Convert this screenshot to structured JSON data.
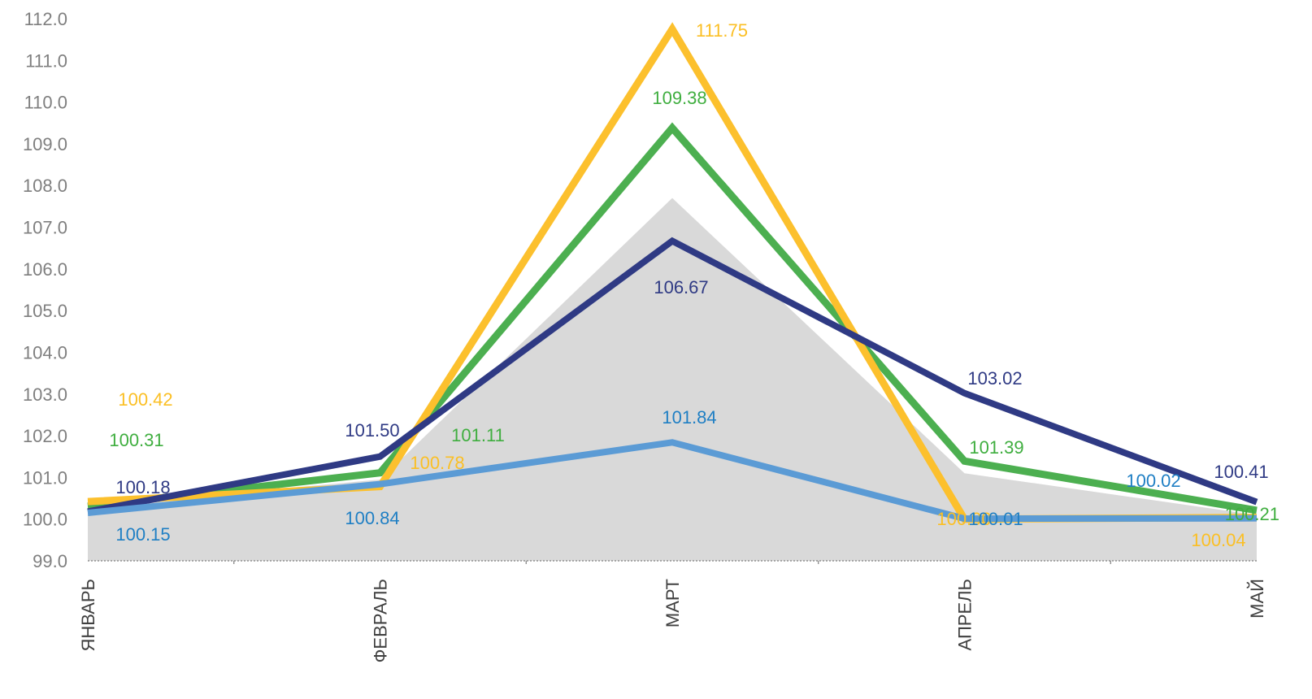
{
  "chart_data": {
    "type": "line",
    "categories": [
      "ЯНВАРЬ",
      "ФЕВРАЛЬ",
      "МАРТ",
      "АПРЕЛЬ",
      "МАЙ"
    ],
    "ylim": [
      99.0,
      112.0
    ],
    "ytick_labels": [
      "99.0",
      "100.0",
      "101.0",
      "102.0",
      "103.0",
      "104.0",
      "105.0",
      "106.0",
      "107.0",
      "108.0",
      "109.0",
      "110.0",
      "111.0",
      "112.0"
    ],
    "grid": false,
    "legend": "none",
    "area": {
      "values": [
        100.3,
        100.95,
        107.7,
        101.1,
        100.1
      ],
      "color": "#d9d9d9"
    },
    "series": [
      {
        "values": [
          100.31,
          101.11,
          109.38,
          101.39,
          100.21
        ],
        "labels": [
          "100.31",
          "101.11",
          "109.38",
          "101.39",
          "100.21"
        ],
        "color": "#4caf50"
      },
      {
        "values": [
          100.42,
          100.78,
          111.75,
          100.0,
          100.04
        ],
        "labels": [
          "100.42",
          "100.78",
          "111.75",
          "100.00",
          "100.04"
        ],
        "color": "#fcc02d"
      },
      {
        "values": [
          100.18,
          101.5,
          106.67,
          103.02,
          100.41
        ],
        "labels": [
          "100.18",
          "101.50",
          "106.67",
          "103.02",
          "100.41"
        ],
        "color": "#2f3a84"
      },
      {
        "values": [
          100.15,
          100.84,
          101.84,
          100.01,
          100.02
        ],
        "labels": [
          "100.15",
          "100.84",
          "101.84",
          "100.01",
          "100.02"
        ],
        "color": "#5b9bd5"
      }
    ],
    "label_colors": {
      "green": "#3fae3f",
      "yellow": "#fbbf24",
      "navy": "#2f3a84",
      "blue": "#1f7fc4"
    }
  }
}
